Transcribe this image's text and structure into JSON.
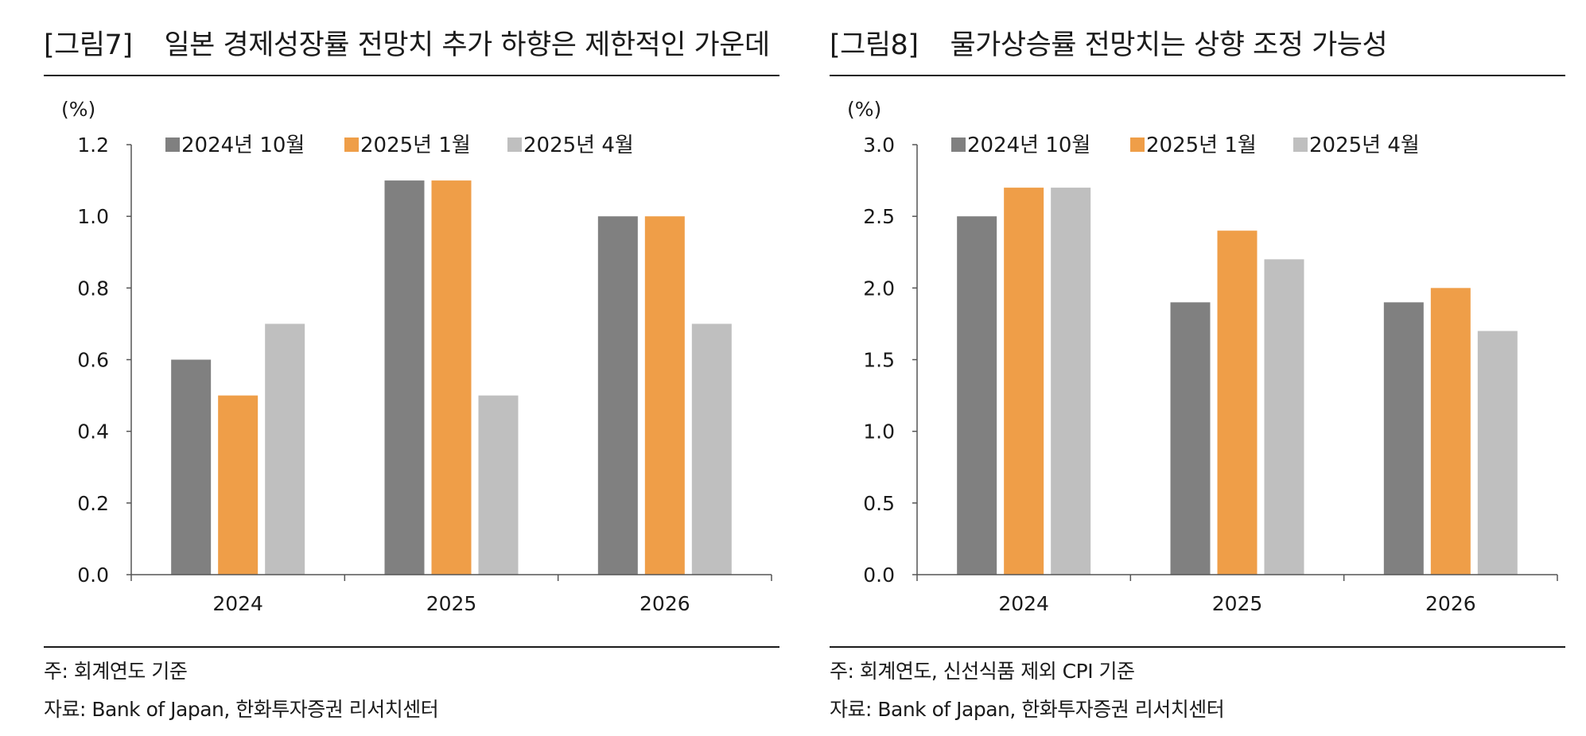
{
  "charts": [
    {
      "fig_label": "[그림7]",
      "title": "일본 경제성장률 전망치 추가 하향은 제한적인 가운데",
      "note": "주: 회계연도 기준",
      "source": "자료: Bank of Japan, 한화투자증권 리서치센터"
    },
    {
      "fig_label": "[그림8]",
      "title": "물가상승률 전망치는 상향 조정 가능성",
      "note": "주: 회계연도, 신선식품 제외 CPI 기준",
      "source": "자료: Bank of Japan, 한화투자증권 리서치센터"
    }
  ],
  "chart_data": [
    {
      "type": "bar",
      "title": "일본 경제성장률 전망치 추가 하향은 제한적인 가운데",
      "unit_label": "(%)",
      "categories": [
        "2024",
        "2025",
        "2026"
      ],
      "series": [
        {
          "name": "2024년 10월",
          "color": "#808080",
          "values": [
            0.6,
            1.1,
            1.0
          ]
        },
        {
          "name": "2025년 1월",
          "color": "#EF9E48",
          "values": [
            0.5,
            1.1,
            1.0
          ]
        },
        {
          "name": "2025년 4월",
          "color": "#BFBFBF",
          "values": [
            0.7,
            0.5,
            0.7
          ]
        }
      ],
      "yticks": [
        "0.0",
        "0.2",
        "0.4",
        "0.6",
        "0.8",
        "1.0",
        "1.2"
      ],
      "ylim": [
        0,
        1.2
      ],
      "legend": "top-left",
      "grid": false
    },
    {
      "type": "bar",
      "title": "물가상승률 전망치는 상향 조정 가능성",
      "unit_label": "(%)",
      "categories": [
        "2024",
        "2025",
        "2026"
      ],
      "series": [
        {
          "name": "2024년 10월",
          "color": "#808080",
          "values": [
            2.5,
            1.9,
            1.9
          ]
        },
        {
          "name": "2025년 1월",
          "color": "#EF9E48",
          "values": [
            2.7,
            2.4,
            2.0
          ]
        },
        {
          "name": "2025년 4월",
          "color": "#BFBFBF",
          "values": [
            2.7,
            2.2,
            1.7
          ]
        }
      ],
      "yticks": [
        "0.0",
        "0.5",
        "1.0",
        "1.5",
        "2.0",
        "2.5",
        "3.0"
      ],
      "ylim": [
        0,
        3.0
      ],
      "legend": "top-left",
      "grid": false
    }
  ]
}
